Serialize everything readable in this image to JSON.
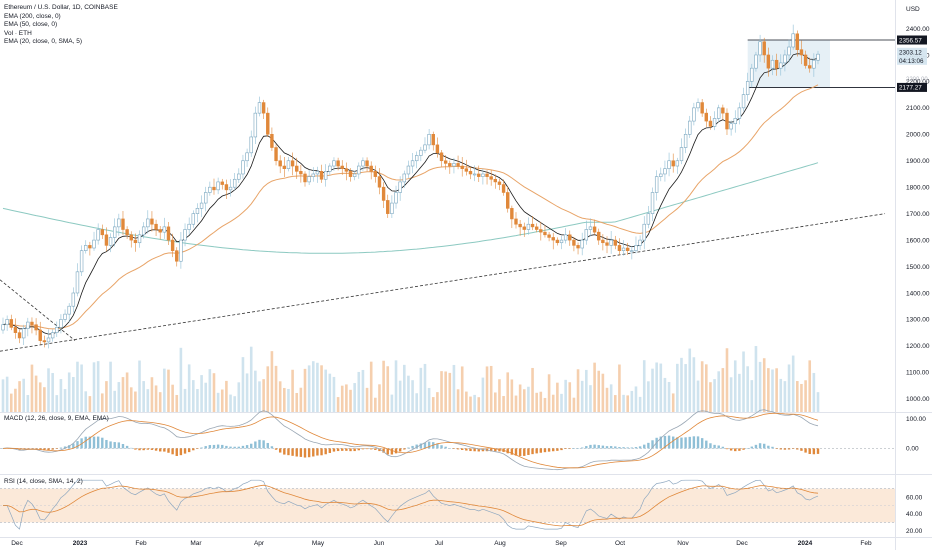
{
  "header": {
    "symbol_line": "Ethereum / U.S. Dollar, 1D, COINBASE",
    "indicators": [
      "EMA (200, close, 0)",
      "EMA (50, close, 0)",
      "Vol · ETH",
      "EMA (20, close, 0, SMA, 5)"
    ],
    "currency": "USD"
  },
  "macd_label": "MACD (12, 26, close, 9, EMA, EMA)",
  "rsi_label": "RSI (14, close, SMA, 14, 2)",
  "price_tags": {
    "upper": "2356.57",
    "last": "2303.12",
    "countdown": "04:13:06",
    "lower": "2177.27"
  },
  "colors": {
    "up": "#8fbfd6",
    "down": "#e0883a",
    "ema200": "#8cc9c1",
    "ema50": "#e8a468",
    "ema20": "#1a1a1a",
    "macd_line": "#9aa7b4",
    "signal_line": "#e0883a",
    "rsi_line": "#8fa8c0",
    "rsi_ma": "#e0883a",
    "rsi_band": "#fbe9d9",
    "box": "#d6e6f0",
    "trendline": "#333333"
  },
  "chart_data": [
    {
      "type": "candlestick",
      "title": "Ethereum / U.S. Dollar, 1D, COINBASE",
      "ylabel": "USD",
      "ylim": [
        950,
        2470
      ],
      "y_ticks": [
        1000,
        1100,
        1200,
        1300,
        1400,
        1500,
        1600,
        1700,
        1800,
        1900,
        2000,
        2100,
        2200,
        2300,
        2400
      ],
      "x_ticks": [
        "Dec",
        "2023",
        "Feb",
        "Mar",
        "Apr",
        "May",
        "Jun",
        "Jul",
        "Aug",
        "Sep",
        "Oct",
        "Nov",
        "Dec",
        "2024",
        "Feb"
      ],
      "series_close": [
        1280,
        1300,
        1270,
        1250,
        1230,
        1265,
        1290,
        1280,
        1260,
        1220,
        1215,
        1230,
        1250,
        1270,
        1300,
        1320,
        1350,
        1400,
        1480,
        1560,
        1580,
        1570,
        1600,
        1640,
        1620,
        1580,
        1610,
        1650,
        1680,
        1640,
        1620,
        1600,
        1590,
        1620,
        1650,
        1680,
        1660,
        1640,
        1630,
        1650,
        1600,
        1560,
        1520,
        1600,
        1640,
        1660,
        1700,
        1720,
        1740,
        1780,
        1800,
        1790,
        1820,
        1810,
        1790,
        1800,
        1830,
        1850,
        1900,
        1930,
        1990,
        2080,
        2120,
        2080,
        2000,
        1950,
        1900,
        1880,
        1870,
        1900,
        1880,
        1860,
        1850,
        1820,
        1840,
        1850,
        1860,
        1830,
        1860,
        1880,
        1900,
        1880,
        1870,
        1860,
        1840,
        1850,
        1880,
        1900,
        1880,
        1860,
        1840,
        1800,
        1750,
        1700,
        1740,
        1780,
        1820,
        1850,
        1880,
        1900,
        1920,
        1940,
        1960,
        2000,
        1960,
        1930,
        1900,
        1890,
        1880,
        1890,
        1880,
        1870,
        1860,
        1850,
        1850,
        1840,
        1850,
        1840,
        1830,
        1820,
        1810,
        1780,
        1720,
        1680,
        1660,
        1650,
        1640,
        1660,
        1650,
        1640,
        1630,
        1620,
        1610,
        1600,
        1590,
        1600,
        1620,
        1600,
        1580,
        1570,
        1600,
        1640,
        1650,
        1630,
        1600,
        1590,
        1580,
        1600,
        1580,
        1560,
        1570,
        1560,
        1560,
        1580,
        1600,
        1660,
        1700,
        1780,
        1840,
        1850,
        1870,
        1900,
        1880,
        1900,
        1950,
        2000,
        2050,
        2100,
        2120,
        2080,
        2050,
        2030,
        2060,
        2100,
        2080,
        2020,
        2040,
        2060,
        2100,
        2150,
        2200,
        2250,
        2300,
        2350,
        2300,
        2250,
        2280,
        2250,
        2270,
        2300,
        2330,
        2380,
        2320,
        2300,
        2260,
        2250,
        2280,
        2303
      ],
      "ema200_endpoints": [
        1700,
        1940
      ],
      "horizontal_levels": [
        2356.57,
        2177.27
      ],
      "trendline": {
        "from": 1180,
        "to": 1700
      }
    },
    {
      "type": "line",
      "title": "MACD (12, 26, close, 9, EMA, EMA)",
      "ylim": [
        -80,
        120
      ],
      "y_ticks": [
        100.0,
        0.0
      ],
      "y_tick_labels": [
        "100.00",
        "0.00"
      ]
    },
    {
      "type": "line",
      "title": "RSI (14, close, SMA, 14, 2)",
      "ylim": [
        15,
        85
      ],
      "y_ticks": [
        20,
        40,
        60
      ],
      "y_tick_labels": [
        "20.00",
        "40.00",
        "60.00"
      ],
      "bands": [
        30,
        70
      ]
    }
  ]
}
